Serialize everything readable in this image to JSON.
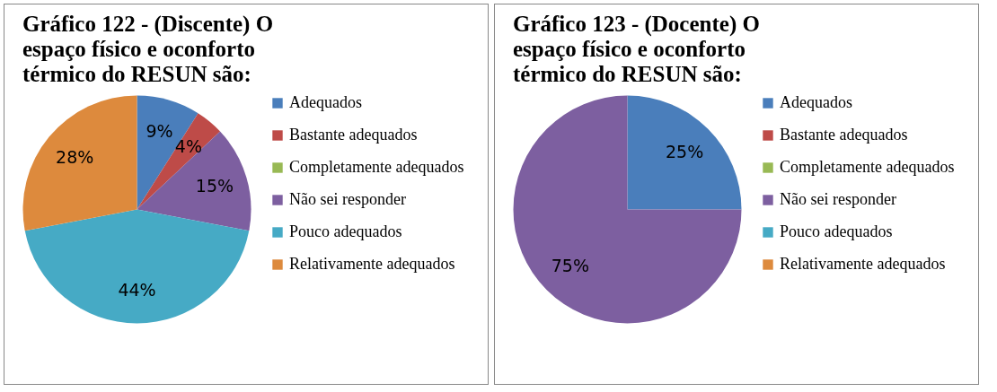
{
  "chart_data": [
    {
      "type": "pie",
      "title": "Gráfico 122 - (Discente) O espaço físico e oconforto térmico do RESUN são:",
      "categories": [
        "Adequados",
        "Bastante adequados",
        "Completamente adequados",
        "Não sei responder",
        "Pouco adequados",
        "Relativamente adequados"
      ],
      "values": [
        9,
        4,
        0,
        15,
        44,
        28
      ],
      "value_labels": [
        "9%",
        "4%",
        null,
        "15%",
        "44%",
        "28%"
      ],
      "colors": [
        "#4a7ebb",
        "#be4b48",
        "#98b954",
        "#7d5fa0",
        "#46aac5",
        "#dd8a3d"
      ],
      "legend": "right"
    },
    {
      "type": "pie",
      "title": "Gráfico 123 - (Docente) O espaço físico e oconforto térmico do RESUN são:",
      "categories": [
        "Adequados",
        "Bastante adequados",
        "Completamente adequados",
        "Não sei responder",
        "Pouco adequados",
        "Relativamente adequados"
      ],
      "values": [
        25,
        0,
        0,
        75,
        0,
        0
      ],
      "value_labels": [
        "25%",
        null,
        null,
        "75%",
        null,
        null
      ],
      "colors": [
        "#4a7ebb",
        "#be4b48",
        "#98b954",
        "#7d5fa0",
        "#46aac5",
        "#dd8a3d"
      ],
      "legend": "right"
    }
  ]
}
